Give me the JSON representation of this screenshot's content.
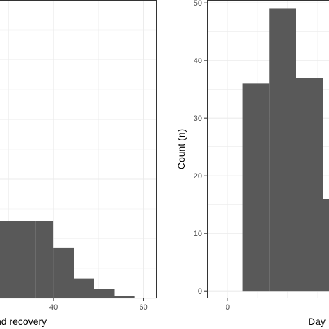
{
  "chart_data": [
    {
      "type": "bar",
      "title": "",
      "xlabel": "nd recovery",
      "ylabel": "",
      "xlim": [
        25,
        63
      ],
      "ylim": [
        0,
        50
      ],
      "x_ticks": [
        40,
        60
      ],
      "x_tick_labels": [
        "40",
        "60"
      ],
      "grid": true,
      "bins": [
        {
          "x0": 25,
          "x1": 36,
          "count": 13
        },
        {
          "x0": 36,
          "x1": 40,
          "count": 13
        },
        {
          "x0": 40,
          "x1": 44.5,
          "count": 8.5
        },
        {
          "x0": 44.5,
          "x1": 49,
          "count": 3.3
        },
        {
          "x0": 49,
          "x1": 53.5,
          "count": 1.6
        },
        {
          "x0": 53.5,
          "x1": 58,
          "count": 0.4
        }
      ],
      "colors": {
        "bar": "#595959",
        "grid": "#ebebeb",
        "frame": "#333333"
      }
    },
    {
      "type": "bar",
      "title": "",
      "xlabel": "Day",
      "ylabel": "Count (n)",
      "xlim": [
        -3.5,
        20
      ],
      "ylim": [
        -1.3,
        50.5
      ],
      "x_ticks": [
        0
      ],
      "x_tick_labels": [
        "0"
      ],
      "y_ticks": [
        0,
        10,
        20,
        30,
        40,
        50
      ],
      "y_tick_labels": [
        "0",
        "10",
        "20",
        "30",
        "40",
        "50"
      ],
      "grid": true,
      "bins": [
        {
          "x0": 2.5,
          "x1": 7,
          "count": 36
        },
        {
          "x0": 7,
          "x1": 11.5,
          "count": 49
        },
        {
          "x0": 11.5,
          "x1": 16,
          "count": 37
        },
        {
          "x0": 16,
          "x1": 20,
          "count": 16
        }
      ],
      "colors": {
        "bar": "#595959",
        "grid": "#ebebeb",
        "frame": "#333333"
      }
    }
  ]
}
